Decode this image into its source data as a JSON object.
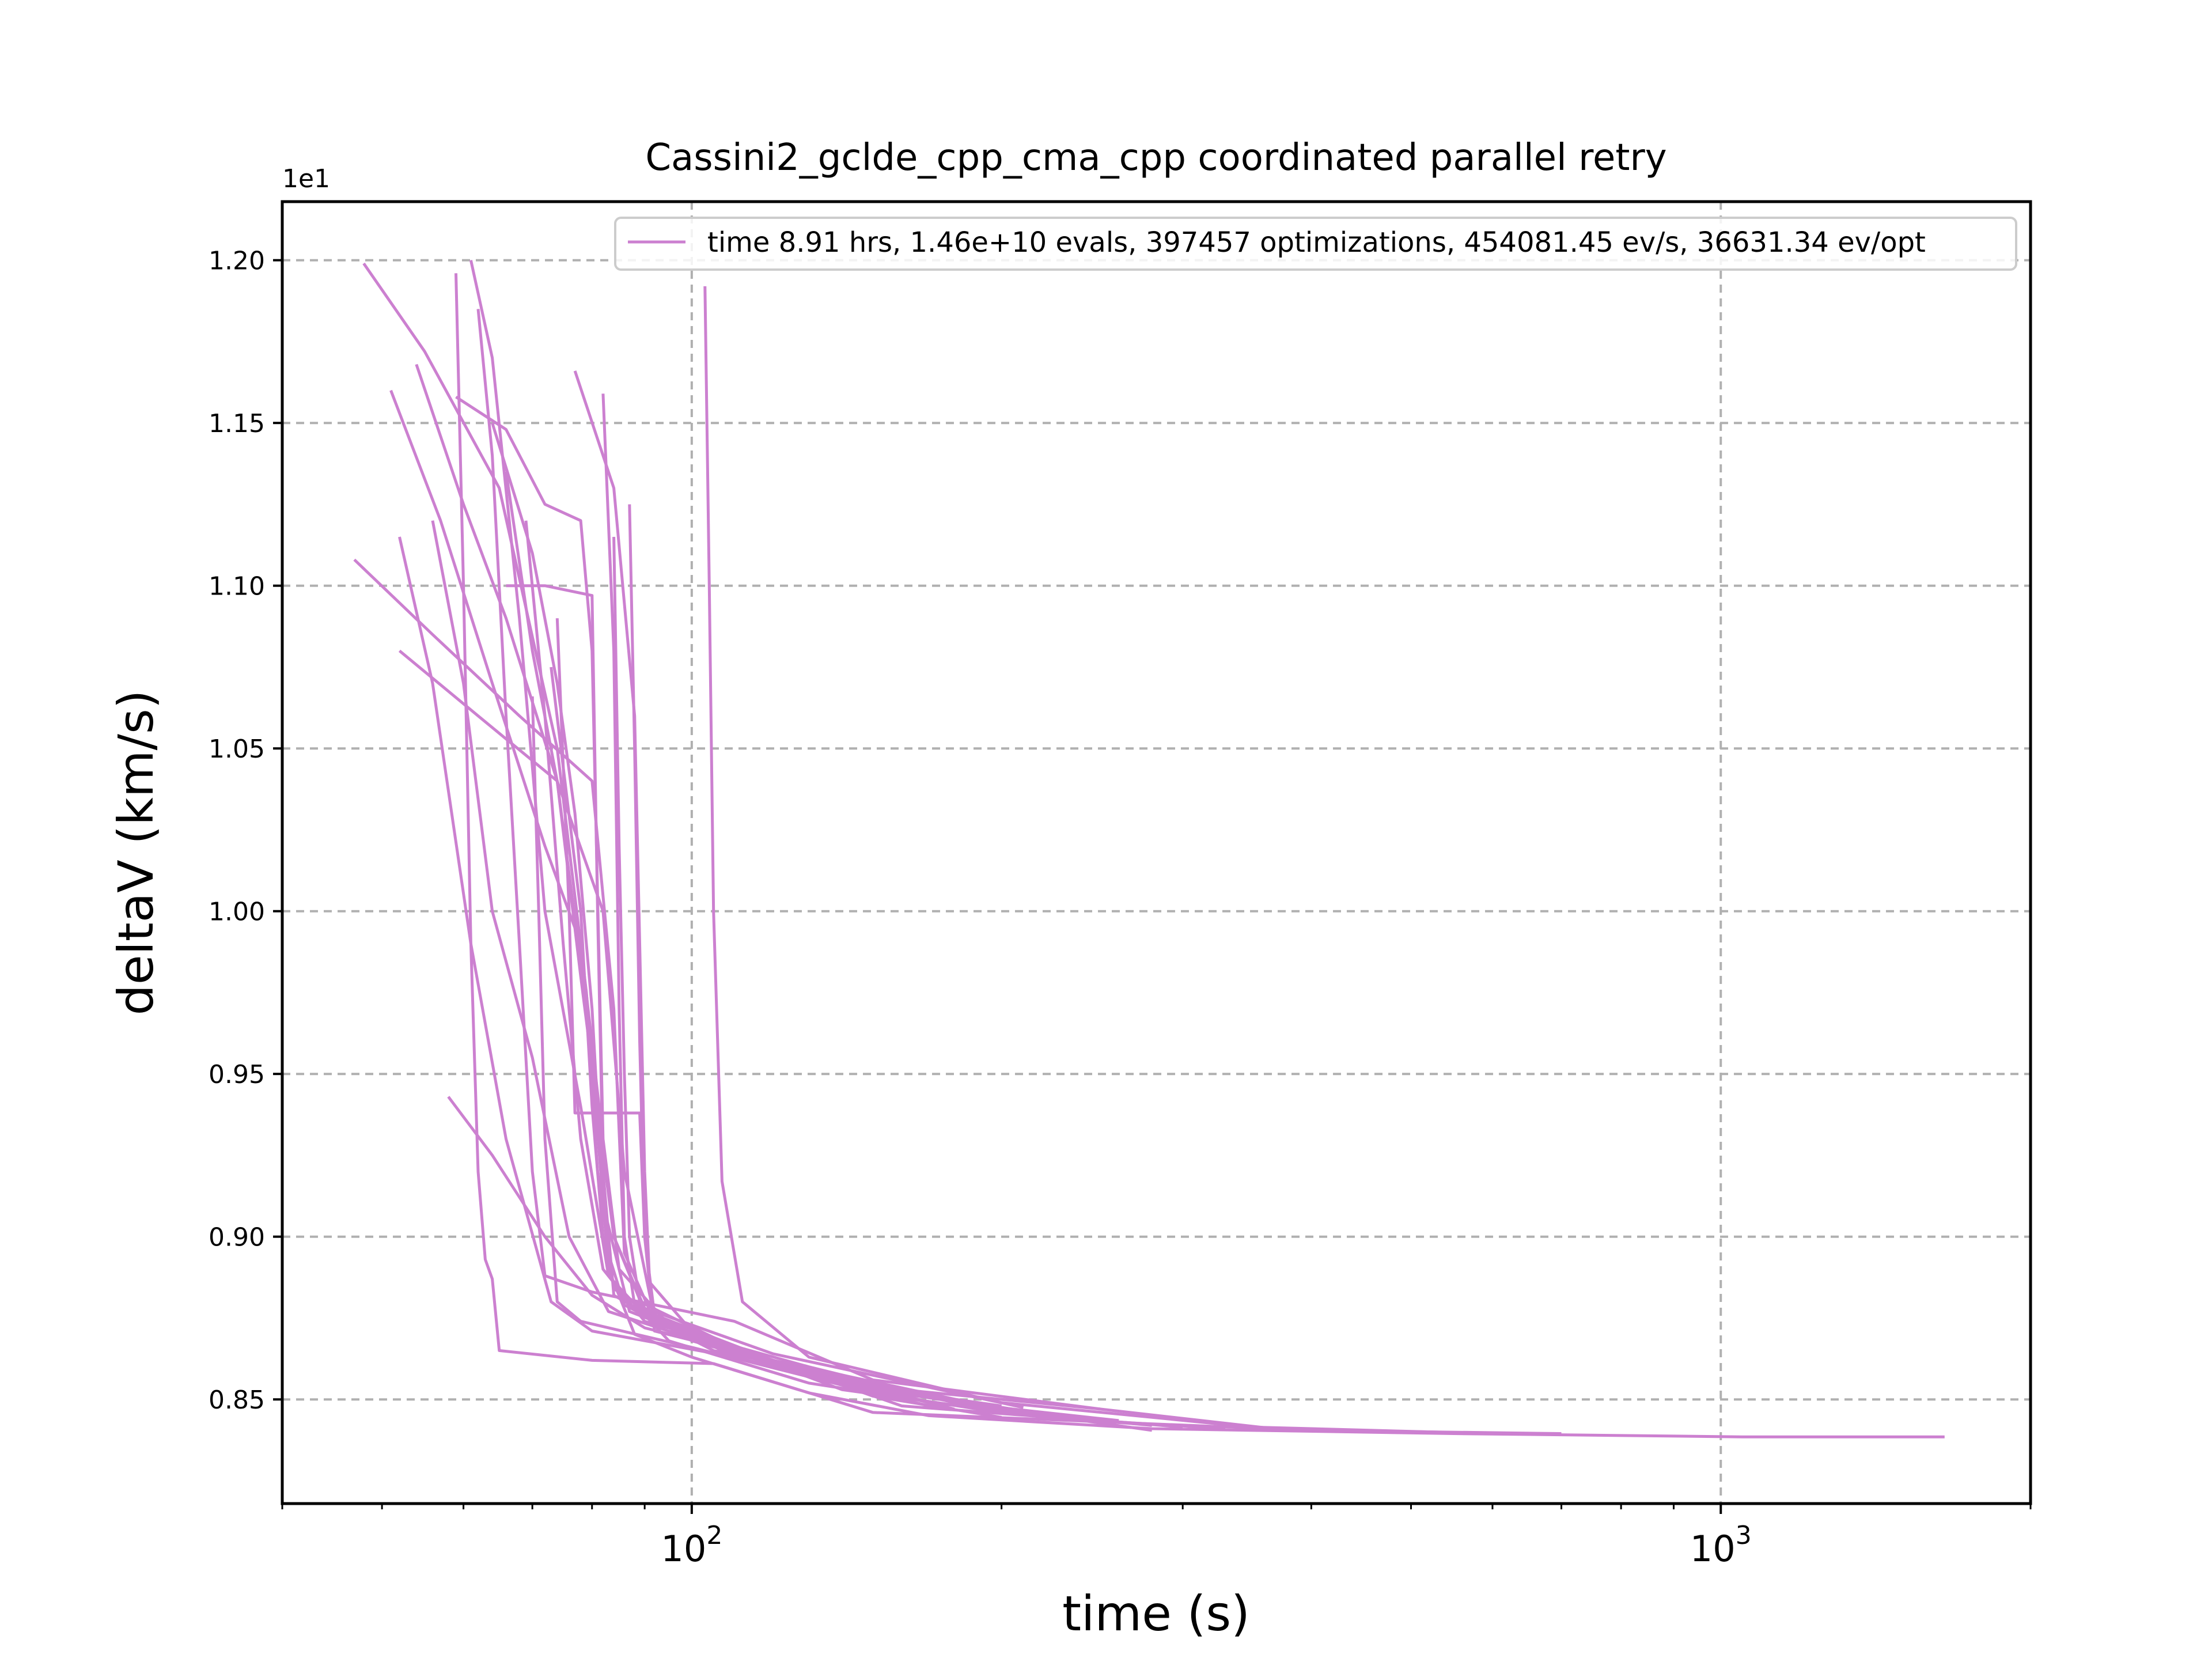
{
  "chart_data": {
    "type": "line",
    "title": "Cassini2_gclde_cpp_cma_cpp coordinated parallel retry",
    "xlabel": "time (s)",
    "ylabel": "deltaV (km/s)",
    "y_offset_text": "1e1",
    "x_scale": "log",
    "xlim": [
      40,
      2000
    ],
    "ylim": [
      0.818,
      1.218
    ],
    "x_ticks": [
      {
        "value": 100,
        "base": "10",
        "exp": "2"
      },
      {
        "value": 1000,
        "base": "10",
        "exp": "3"
      }
    ],
    "y_ticks": [
      {
        "value": 0.85,
        "label": "0.85"
      },
      {
        "value": 0.9,
        "label": "0.90"
      },
      {
        "value": 0.95,
        "label": "0.95"
      },
      {
        "value": 1.0,
        "label": "1.00"
      },
      {
        "value": 1.05,
        "label": "1.05"
      },
      {
        "value": 1.1,
        "label": "1.10"
      },
      {
        "value": 1.15,
        "label": "1.15"
      },
      {
        "value": 1.2,
        "label": "1.20"
      }
    ],
    "grid": true,
    "legend_position": "top-right",
    "line_color": "#cc80d0",
    "grid_color": "#b0b0b0",
    "series": [
      {
        "name": "time 8.91 hrs, 1.46e+10 evals, 397457 optimizations, 454081.45 ev/s, 36631.34 ev/opt",
        "points": [
          [
            48,
            1.199
          ],
          [
            55,
            1.172
          ],
          [
            65,
            1.13
          ],
          [
            74,
            1.05
          ],
          [
            79,
            0.975
          ],
          [
            83,
            0.89
          ],
          [
            88,
            0.87
          ],
          [
            100,
            0.863
          ],
          [
            130,
            0.852
          ],
          [
            170,
            0.845
          ],
          [
            280,
            0.841
          ],
          [
            550,
            0.8395
          ],
          [
            1050,
            0.8385
          ],
          [
            1650,
            0.8385
          ]
        ]
      },
      {
        "points": [
          [
            61,
            1.2
          ],
          [
            64,
            1.17
          ],
          [
            68,
            1.09
          ],
          [
            72,
            1.0
          ],
          [
            78,
            0.94
          ],
          [
            83,
            0.888
          ],
          [
            95,
            0.868
          ],
          [
            130,
            0.855
          ],
          [
            190,
            0.847
          ],
          [
            280,
            0.842
          ]
        ]
      },
      {
        "points": [
          [
            59,
            1.196
          ],
          [
            60,
            1.1
          ],
          [
            61,
            0.99
          ],
          [
            62,
            0.92
          ],
          [
            63,
            0.893
          ],
          [
            64,
            0.887
          ],
          [
            65,
            0.865
          ],
          [
            80,
            0.862
          ],
          [
            105,
            0.861
          ],
          [
            150,
            0.846
          ],
          [
            400,
            0.8405
          ],
          [
            700,
            0.8395
          ]
        ]
      },
      {
        "points": [
          [
            51,
            1.16
          ],
          [
            57,
            1.12
          ],
          [
            64,
            1.07
          ],
          [
            72,
            1.02
          ],
          [
            78,
            0.99
          ],
          [
            84,
            0.9
          ],
          [
            90,
            0.877
          ],
          [
            110,
            0.866
          ],
          [
            160,
            0.848
          ],
          [
            270,
            0.8425
          ]
        ]
      },
      {
        "points": [
          [
            54,
            1.168
          ],
          [
            60,
            1.125
          ],
          [
            66,
            1.09
          ],
          [
            74,
            1.04
          ],
          [
            82,
            1.0
          ],
          [
            86,
            0.92
          ],
          [
            92,
            0.875
          ],
          [
            120,
            0.861
          ],
          [
            200,
            0.846
          ]
        ]
      },
      {
        "points": [
          [
            62,
            1.185
          ],
          [
            64,
            1.14
          ],
          [
            66,
            1.06
          ],
          [
            68,
            0.99
          ],
          [
            70,
            0.92
          ],
          [
            72,
            0.888
          ],
          [
            80,
            0.883
          ],
          [
            110,
            0.874
          ],
          [
            150,
            0.856
          ],
          [
            250,
            0.847
          ],
          [
            380,
            0.8405
          ]
        ]
      },
      {
        "points": [
          [
            59,
            1.158
          ],
          [
            66,
            1.148
          ],
          [
            72,
            1.125
          ],
          [
            78,
            1.12
          ],
          [
            80,
            1.08
          ],
          [
            82,
            0.93
          ],
          [
            85,
            0.89
          ],
          [
            95,
            0.873
          ],
          [
            140,
            0.853
          ],
          [
            220,
            0.8445
          ],
          [
            330,
            0.841
          ]
        ]
      },
      {
        "points": [
          [
            77,
            1.166
          ],
          [
            84,
            1.13
          ],
          [
            88,
            1.06
          ],
          [
            89,
            0.99
          ],
          [
            90,
            0.92
          ],
          [
            91,
            0.886
          ],
          [
            100,
            0.871
          ],
          [
            150,
            0.851
          ],
          [
            200,
            0.8445
          ]
        ]
      },
      {
        "points": [
          [
            82,
            1.159
          ],
          [
            84,
            1.08
          ],
          [
            85,
            0.97
          ],
          [
            86,
            0.9
          ],
          [
            88,
            0.879
          ],
          [
            110,
            0.863
          ],
          [
            170,
            0.849
          ],
          [
            260,
            0.843
          ]
        ]
      },
      {
        "points": [
          [
            87,
            1.125
          ],
          [
            88,
            1.05
          ],
          [
            89,
            0.96
          ],
          [
            90,
            0.9
          ],
          [
            92,
            0.876
          ],
          [
            120,
            0.862
          ],
          [
            200,
            0.847
          ],
          [
            280,
            0.8405
          ]
        ]
      },
      {
        "points": [
          [
            103,
            1.192
          ],
          [
            104,
            1.1
          ],
          [
            105,
            1.0
          ],
          [
            107,
            0.917
          ],
          [
            112,
            0.88
          ],
          [
            130,
            0.863
          ],
          [
            200,
            0.849
          ],
          [
            350,
            0.8415
          ],
          [
            600,
            0.8395
          ]
        ]
      },
      {
        "points": [
          [
            47,
            1.108
          ],
          [
            56,
            1.085
          ],
          [
            68,
            1.06
          ],
          [
            80,
            1.04
          ],
          [
            84,
            0.97
          ],
          [
            86,
            0.895
          ],
          [
            92,
            0.874
          ],
          [
            120,
            0.862
          ],
          [
            180,
            0.847
          ]
        ]
      },
      {
        "points": [
          [
            52,
            1.08
          ],
          [
            62,
            1.06
          ],
          [
            74,
            1.04
          ],
          [
            79,
            0.97
          ],
          [
            81,
            0.92
          ],
          [
            84,
            0.884
          ],
          [
            100,
            0.869
          ],
          [
            160,
            0.851
          ]
        ]
      },
      {
        "points": [
          [
            52,
            1.115
          ],
          [
            56,
            1.07
          ],
          [
            61,
            0.99
          ],
          [
            66,
            0.93
          ],
          [
            73,
            0.88
          ],
          [
            80,
            0.871
          ],
          [
            110,
            0.863
          ],
          [
            170,
            0.848
          ]
        ]
      },
      {
        "points": [
          [
            56,
            1.12
          ],
          [
            60,
            1.07
          ],
          [
            64,
            1.0
          ],
          [
            70,
            0.955
          ],
          [
            76,
            0.9
          ],
          [
            83,
            0.877
          ],
          [
            130,
            0.857
          ],
          [
            230,
            0.8445
          ]
        ]
      },
      {
        "points": [
          [
            58,
            0.943
          ],
          [
            64,
            0.925
          ],
          [
            72,
            0.9
          ],
          [
            80,
            0.882
          ],
          [
            90,
            0.872
          ],
          [
            120,
            0.862
          ],
          [
            200,
            0.846
          ],
          [
            300,
            0.8415
          ]
        ]
      },
      {
        "points": [
          [
            70,
            1.066
          ],
          [
            71,
            1.0
          ],
          [
            72,
            0.93
          ],
          [
            74,
            0.88
          ],
          [
            78,
            0.874
          ],
          [
            100,
            0.866
          ],
          [
            150,
            0.852
          ]
        ]
      },
      {
        "points": [
          [
            66,
            1.1
          ],
          [
            72,
            1.1
          ],
          [
            80,
            1.097
          ],
          [
            81,
            1.0
          ],
          [
            82,
            0.92
          ],
          [
            84,
            0.882
          ],
          [
            100,
            0.868
          ],
          [
            140,
            0.855
          ],
          [
            200,
            0.848
          ]
        ]
      },
      {
        "points": [
          [
            74,
            1.09
          ],
          [
            76,
            1.0
          ],
          [
            77,
            0.938
          ],
          [
            83,
            0.938
          ],
          [
            89,
            0.938
          ],
          [
            90,
            0.9
          ],
          [
            92,
            0.871
          ],
          [
            120,
            0.862
          ],
          [
            180,
            0.849
          ],
          [
            260,
            0.8435
          ]
        ]
      },
      {
        "points": [
          [
            64,
            1.15
          ],
          [
            70,
            1.11
          ],
          [
            74,
            1.07
          ],
          [
            77,
            1.03
          ],
          [
            80,
            0.97
          ],
          [
            82,
            0.91
          ],
          [
            87,
            0.877
          ],
          [
            105,
            0.867
          ],
          [
            150,
            0.853
          ],
          [
            230,
            0.8445
          ]
        ]
      },
      {
        "points": [
          [
            69,
            1.12
          ],
          [
            72,
            1.06
          ],
          [
            75,
            0.99
          ],
          [
            78,
            0.93
          ],
          [
            82,
            0.89
          ],
          [
            90,
            0.874
          ],
          [
            130,
            0.86
          ],
          [
            180,
            0.849
          ]
        ]
      },
      {
        "points": [
          [
            66,
            1.135
          ],
          [
            70,
            1.08
          ],
          [
            74,
            1.04
          ],
          [
            78,
            0.98
          ],
          [
            84,
            0.9
          ],
          [
            90,
            0.878
          ],
          [
            120,
            0.864
          ],
          [
            210,
            0.8475
          ]
        ]
      },
      {
        "points": [
          [
            84,
            1.115
          ],
          [
            85,
            1.02
          ],
          [
            86,
            0.95
          ],
          [
            87,
            0.9
          ],
          [
            89,
            0.88
          ],
          [
            115,
            0.863
          ],
          [
            160,
            0.853
          ],
          [
            250,
            0.847
          ]
        ]
      },
      {
        "points": [
          [
            73,
            1.075
          ],
          [
            78,
            1.0
          ],
          [
            80,
            0.94
          ],
          [
            82,
            0.9
          ],
          [
            86,
            0.879
          ],
          [
            105,
            0.865
          ],
          [
            140,
            0.857
          ]
        ]
      }
    ]
  }
}
